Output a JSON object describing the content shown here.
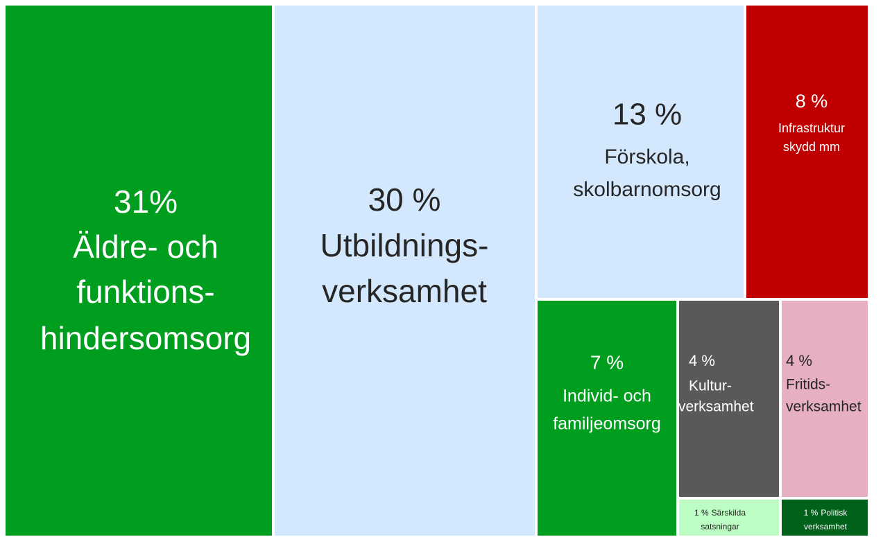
{
  "chart_data": {
    "type": "treemap",
    "categories": [
      [
        "Äldre- och",
        "funktions-",
        "hindersomsorg"
      ],
      [
        "Utbildnings-",
        "verksamhet"
      ],
      [
        "Förskola,",
        "skolbarnomsorg"
      ],
      [
        "Infrastruktur",
        "skydd mm"
      ],
      [
        "Individ- och",
        "familjeomsorg"
      ],
      [
        "Kultur-",
        "verksamhet"
      ],
      [
        "Fritids-",
        "verksamhet"
      ],
      [
        "Särskilda",
        "satsningar"
      ],
      [
        "Politisk",
        "verksamhet"
      ]
    ],
    "values": [
      31,
      30,
      13,
      8,
      7,
      4,
      4,
      1,
      1
    ],
    "value_labels": [
      "31%",
      "30 %",
      "13 %",
      "8 %",
      "7 %",
      "4 %",
      "4 %",
      "1 %",
      "1 %"
    ],
    "colors": [
      "#009e1f",
      "#d3e7fd",
      "#d3e7fd",
      "#c00000",
      "#009e1f",
      "#595959",
      "#e6b0c1",
      "#bdfcc3",
      "#00621a"
    ]
  }
}
